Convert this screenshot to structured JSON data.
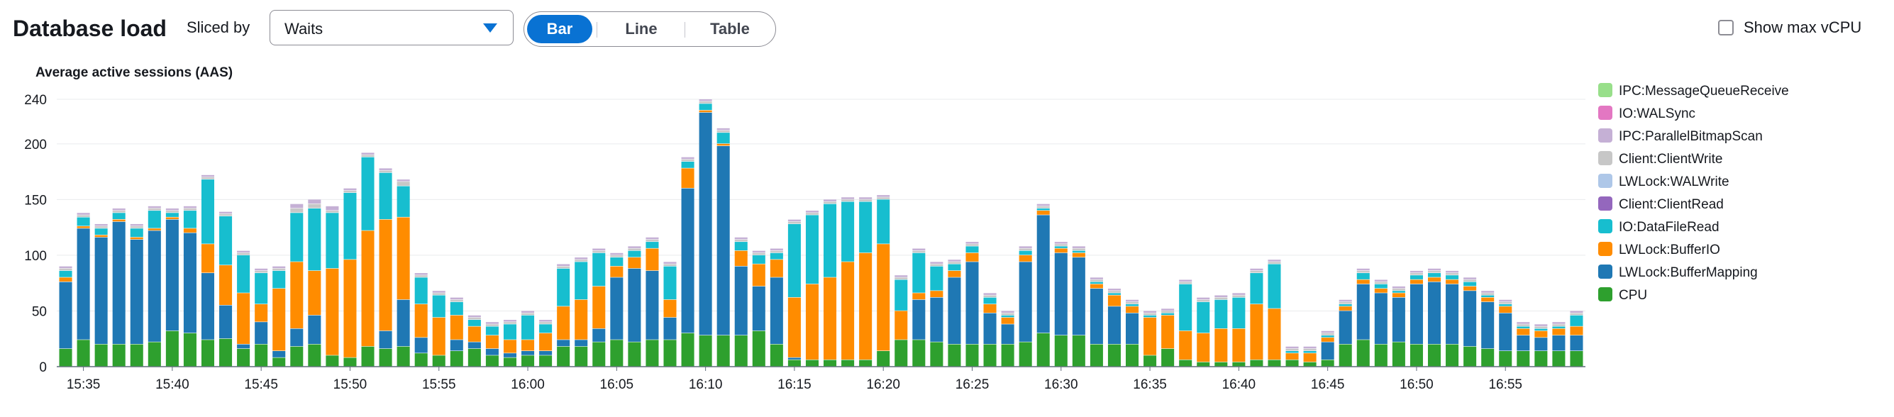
{
  "header": {
    "title": "Database load",
    "sliced_by_label": "Sliced by",
    "sliced_by_value": "Waits",
    "view_tabs": [
      {
        "label": "Bar",
        "selected": true
      },
      {
        "label": "Line",
        "selected": false
      },
      {
        "label": "Table",
        "selected": false
      }
    ],
    "show_max_vcpu_label": "Show max vCPU",
    "show_max_vcpu_checked": false
  },
  "chart_data": {
    "type": "bar",
    "stacked": true,
    "title": "Average active sessions (AAS)",
    "xlabel": "",
    "ylabel": "Average active sessions (AAS)",
    "ylim": [
      0,
      240
    ],
    "yticks": [
      0,
      50,
      100,
      150,
      200,
      240
    ],
    "grid": true,
    "legend_position": "right",
    "x_tick_labels": [
      {
        "index": 1,
        "label": "15:35"
      },
      {
        "index": 6,
        "label": "15:40"
      },
      {
        "index": 11,
        "label": "15:45"
      },
      {
        "index": 16,
        "label": "15:50"
      },
      {
        "index": 21,
        "label": "15:55"
      },
      {
        "index": 26,
        "label": "16:00"
      },
      {
        "index": 31,
        "label": "16:05"
      },
      {
        "index": 36,
        "label": "16:10"
      },
      {
        "index": 41,
        "label": "16:15"
      },
      {
        "index": 46,
        "label": "16:20"
      },
      {
        "index": 51,
        "label": "16:25"
      },
      {
        "index": 56,
        "label": "16:30"
      },
      {
        "index": 61,
        "label": "16:35"
      },
      {
        "index": 66,
        "label": "16:40"
      },
      {
        "index": 71,
        "label": "16:45"
      },
      {
        "index": 76,
        "label": "16:50"
      },
      {
        "index": 81,
        "label": "16:55"
      }
    ],
    "series": [
      {
        "name": "CPU",
        "color": "#2ea02e",
        "values": [
          16,
          24,
          20,
          20,
          20,
          22,
          32,
          30,
          24,
          25,
          16,
          20,
          8,
          18,
          20,
          10,
          8,
          18,
          16,
          18,
          12,
          10,
          14,
          16,
          10,
          8,
          10,
          10,
          18,
          18,
          22,
          24,
          22,
          24,
          24,
          30,
          28,
          28,
          28,
          32,
          20,
          6,
          6,
          6,
          6,
          6,
          14,
          24,
          24,
          22,
          20,
          20,
          20,
          20,
          22,
          30,
          28,
          28,
          20,
          20,
          20,
          10,
          16,
          6,
          4,
          4,
          4,
          6,
          6,
          6,
          4,
          6,
          20,
          24,
          20,
          22,
          20,
          20,
          20,
          18,
          16,
          14,
          14,
          14,
          14,
          14
        ]
      },
      {
        "name": "LWLock:BufferMapping",
        "color": "#1f78b4",
        "values": [
          60,
          100,
          96,
          110,
          94,
          100,
          100,
          90,
          60,
          30,
          4,
          20,
          6,
          16,
          26,
          0,
          0,
          0,
          16,
          42,
          14,
          0,
          10,
          6,
          6,
          4,
          4,
          4,
          6,
          6,
          12,
          56,
          66,
          62,
          20,
          130,
          200,
          170,
          62,
          40,
          60,
          2,
          0,
          0,
          0,
          0,
          0,
          0,
          36,
          40,
          60,
          74,
          28,
          18,
          72,
          106,
          74,
          70,
          50,
          34,
          28,
          0,
          0,
          0,
          0,
          0,
          0,
          0,
          0,
          0,
          0,
          16,
          30,
          50,
          46,
          40,
          54,
          56,
          54,
          50,
          42,
          34,
          14,
          12,
          14,
          14
        ]
      },
      {
        "name": "LWLock:BufferIO",
        "color": "#ff8c00",
        "values": [
          4,
          2,
          2,
          2,
          2,
          2,
          2,
          4,
          26,
          36,
          46,
          16,
          56,
          60,
          40,
          78,
          88,
          104,
          100,
          74,
          30,
          34,
          22,
          14,
          12,
          12,
          10,
          16,
          30,
          36,
          38,
          10,
          10,
          20,
          16,
          18,
          2,
          2,
          14,
          20,
          16,
          54,
          68,
          74,
          88,
          96,
          96,
          26,
          6,
          6,
          6,
          8,
          8,
          6,
          6,
          4,
          4,
          4,
          4,
          10,
          6,
          34,
          30,
          26,
          26,
          30,
          30,
          50,
          46,
          6,
          8,
          4,
          4,
          4,
          4,
          4,
          4,
          4,
          4,
          4,
          4,
          6,
          6,
          6,
          6,
          8
        ]
      },
      {
        "name": "IO:DataFileRead",
        "color": "#17becf",
        "values": [
          6,
          8,
          6,
          6,
          8,
          16,
          4,
          16,
          58,
          44,
          34,
          28,
          16,
          44,
          56,
          50,
          60,
          66,
          42,
          28,
          24,
          20,
          12,
          6,
          8,
          14,
          22,
          8,
          34,
          34,
          30,
          8,
          6,
          6,
          30,
          6,
          6,
          10,
          8,
          8,
          6,
          66,
          62,
          66,
          54,
          46,
          40,
          28,
          36,
          22,
          6,
          6,
          6,
          2,
          4,
          2,
          2,
          2,
          2,
          2,
          2,
          2,
          2,
          42,
          28,
          26,
          28,
          28,
          40,
          2,
          2,
          2,
          2,
          6,
          4,
          2,
          4,
          4,
          4,
          4,
          2,
          2,
          2,
          2,
          2,
          10
        ]
      },
      {
        "name": "LWLock:WALWrite",
        "color": "#aec7e8",
        "values": [
          0,
          0,
          0,
          0,
          0,
          0,
          0,
          0,
          0,
          0,
          0,
          0,
          0,
          0,
          0,
          0,
          0,
          0,
          0,
          0,
          0,
          0,
          0,
          0,
          0,
          0,
          0,
          0,
          0,
          0,
          0,
          0,
          0,
          0,
          0,
          0,
          0,
          0,
          0,
          0,
          0,
          0,
          0,
          0,
          0,
          0,
          0,
          0,
          0,
          0,
          0,
          0,
          0,
          0,
          0,
          0,
          0,
          0,
          0,
          0,
          0,
          0,
          0,
          0,
          0,
          0,
          0,
          0,
          0,
          0,
          0,
          0,
          0,
          0,
          0,
          0,
          0,
          0,
          0,
          0,
          0,
          0,
          0,
          0,
          0,
          0
        ]
      },
      {
        "name": "Client:ClientRead",
        "color": "#9467bd",
        "values": [
          0,
          0,
          0,
          0,
          0,
          0,
          0,
          0,
          0,
          0,
          0,
          0,
          0,
          0,
          0,
          0,
          0,
          0,
          0,
          0,
          0,
          0,
          0,
          0,
          0,
          0,
          0,
          0,
          0,
          0,
          0,
          0,
          0,
          0,
          0,
          0,
          0,
          0,
          0,
          0,
          0,
          0,
          0,
          0,
          0,
          0,
          0,
          0,
          0,
          0,
          0,
          0,
          0,
          0,
          0,
          0,
          0,
          0,
          0,
          0,
          0,
          0,
          0,
          0,
          0,
          0,
          0,
          0,
          0,
          0,
          0,
          0,
          0,
          0,
          0,
          0,
          0,
          0,
          0,
          0,
          0,
          0,
          0,
          0,
          0,
          0
        ]
      },
      {
        "name": "Client:ClientWrite",
        "color": "#c7c7c7",
        "values": [
          2,
          2,
          2,
          2,
          2,
          2,
          2,
          2,
          2,
          2,
          2,
          2,
          2,
          4,
          4,
          2,
          2,
          2,
          2,
          4,
          2,
          2,
          2,
          2,
          2,
          2,
          2,
          2,
          2,
          2,
          2,
          2,
          2,
          2,
          2,
          2,
          2,
          2,
          2,
          2,
          2,
          2,
          2,
          2,
          2,
          2,
          2,
          2,
          2,
          2,
          2,
          2,
          2,
          2,
          2,
          2,
          2,
          2,
          2,
          2,
          2,
          2,
          2,
          2,
          2,
          2,
          2,
          2,
          2,
          2,
          2,
          2,
          2,
          2,
          2,
          2,
          2,
          2,
          2,
          2,
          2,
          2,
          2,
          2,
          2,
          2
        ]
      },
      {
        "name": "IPC:ParallelBitmapScan",
        "color": "#c5b0d5",
        "values": [
          2,
          2,
          2,
          2,
          2,
          2,
          2,
          2,
          2,
          2,
          2,
          2,
          2,
          4,
          4,
          4,
          2,
          2,
          2,
          2,
          2,
          2,
          2,
          2,
          2,
          2,
          2,
          2,
          2,
          2,
          2,
          2,
          2,
          2,
          2,
          2,
          2,
          2,
          2,
          2,
          2,
          2,
          2,
          2,
          2,
          2,
          2,
          2,
          2,
          2,
          2,
          2,
          2,
          2,
          2,
          2,
          2,
          2,
          2,
          2,
          2,
          2,
          2,
          2,
          2,
          2,
          2,
          2,
          2,
          2,
          2,
          2,
          2,
          2,
          2,
          2,
          2,
          2,
          2,
          2,
          2,
          2,
          2,
          2,
          2,
          2
        ]
      },
      {
        "name": "IO:WALSync",
        "color": "#e377c2",
        "values": [
          0,
          0,
          0,
          0,
          0,
          0,
          0,
          0,
          0,
          0,
          0,
          0,
          0,
          0,
          0,
          0,
          0,
          0,
          0,
          0,
          0,
          0,
          0,
          0,
          0,
          0,
          0,
          0,
          0,
          0,
          0,
          0,
          0,
          0,
          0,
          0,
          0,
          0,
          0,
          0,
          0,
          0,
          0,
          0,
          0,
          0,
          0,
          0,
          0,
          0,
          0,
          0,
          0,
          0,
          0,
          0,
          0,
          0,
          0,
          0,
          0,
          0,
          0,
          0,
          0,
          0,
          0,
          0,
          0,
          0,
          0,
          0,
          0,
          0,
          0,
          0,
          0,
          0,
          0,
          0,
          0,
          0,
          0,
          0,
          0,
          0
        ]
      },
      {
        "name": "IPC:MessageQueueReceive",
        "color": "#98df8a",
        "values": [
          0,
          0,
          0,
          0,
          0,
          0,
          0,
          0,
          0,
          0,
          0,
          0,
          0,
          0,
          0,
          0,
          0,
          0,
          0,
          0,
          0,
          0,
          0,
          0,
          0,
          0,
          0,
          0,
          0,
          0,
          0,
          0,
          0,
          0,
          0,
          0,
          0,
          0,
          0,
          0,
          0,
          0,
          0,
          0,
          0,
          0,
          0,
          0,
          0,
          0,
          0,
          0,
          0,
          0,
          0,
          0,
          0,
          0,
          0,
          0,
          0,
          0,
          0,
          0,
          0,
          0,
          0,
          0,
          0,
          0,
          0,
          0,
          0,
          0,
          0,
          0,
          0,
          0,
          0,
          0,
          0,
          0,
          0,
          0,
          0,
          0
        ]
      }
    ],
    "legend_order": [
      "IPC:MessageQueueReceive",
      "IO:WALSync",
      "IPC:ParallelBitmapScan",
      "Client:ClientWrite",
      "LWLock:WALWrite",
      "Client:ClientRead",
      "IO:DataFileRead",
      "LWLock:BufferIO",
      "LWLock:BufferMapping",
      "CPU"
    ]
  }
}
